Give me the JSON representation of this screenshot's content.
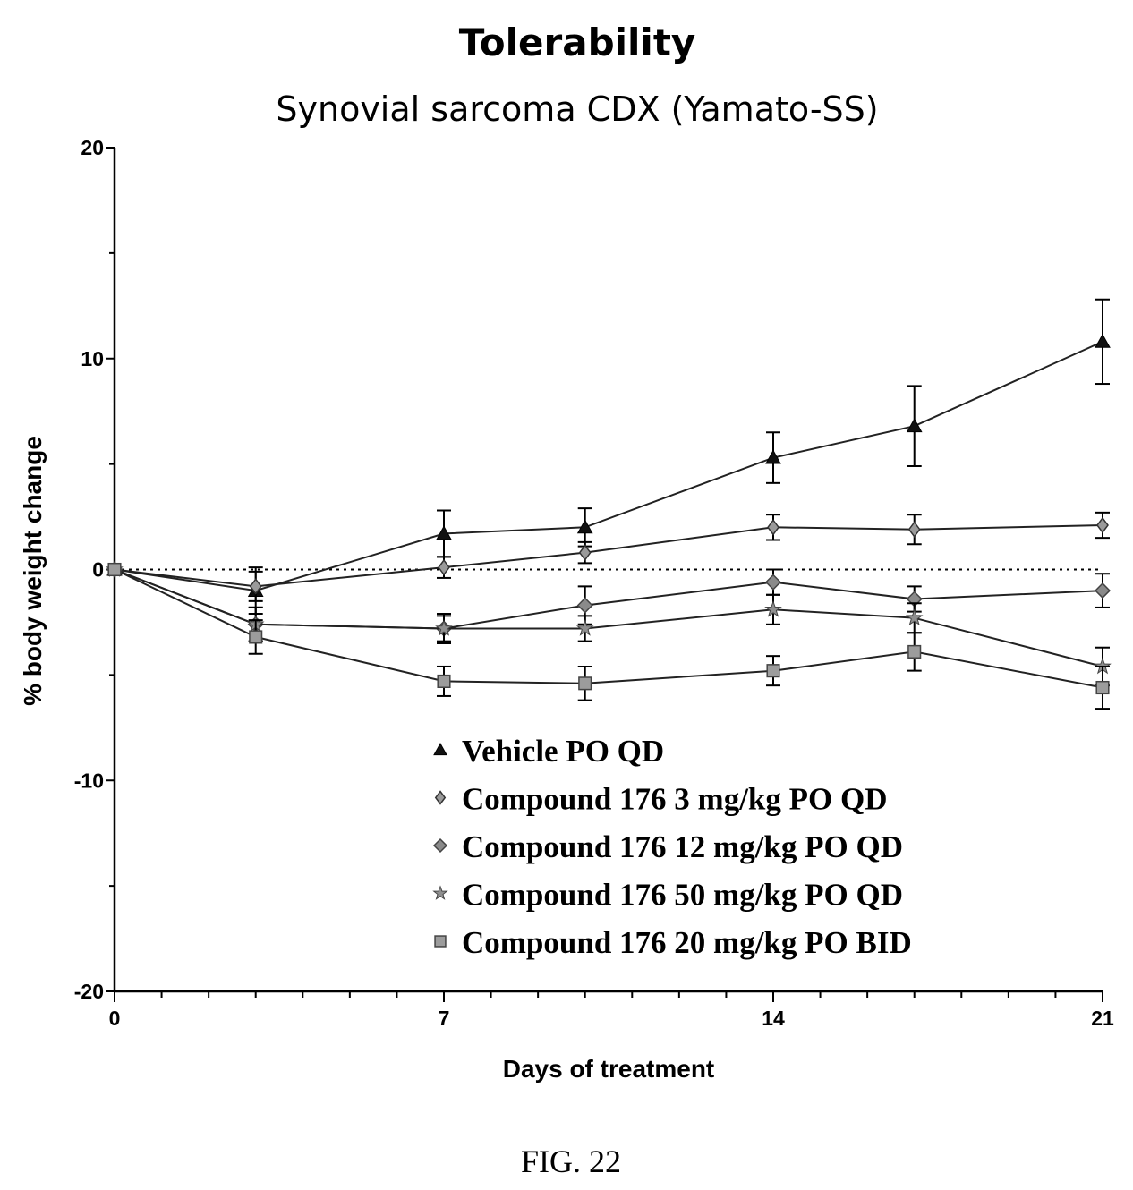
{
  "chart_data": {
    "type": "line",
    "title": "Tolerability",
    "subtitle": "Synovial sarcoma CDX (Yamato-SS)",
    "xlabel": "Days of treatment",
    "ylabel": "% body weight change",
    "xlim": [
      0,
      21
    ],
    "ylim": [
      -20,
      20
    ],
    "x_ticks": [
      0,
      7,
      14,
      21
    ],
    "y_ticks": [
      20,
      10,
      0,
      -10,
      -20
    ],
    "y_tick_labels": [
      "20",
      "10",
      "0",
      "-10",
      "-20"
    ],
    "reference_line": 0,
    "legend_position": "lower-right",
    "x": [
      0,
      3,
      7,
      10,
      14,
      17,
      21
    ],
    "series": [
      {
        "name": "Vehicle PO QD",
        "marker": "triangle",
        "values": [
          0,
          -1.0,
          1.7,
          2.0,
          5.3,
          6.8,
          10.8
        ],
        "errors": [
          0,
          1.1,
          1.1,
          0.9,
          1.2,
          1.9,
          2.0
        ]
      },
      {
        "name": "Compound 176 3 mg/kg PO QD",
        "marker": "diamond",
        "values": [
          0,
          -0.8,
          0.1,
          0.8,
          2.0,
          1.9,
          2.1
        ],
        "errors": [
          0,
          0.7,
          0.5,
          0.5,
          0.6,
          0.7,
          0.6
        ]
      },
      {
        "name": "Compound 176 12 mg/kg PO QD",
        "marker": "circle",
        "values": [
          0,
          -2.6,
          -2.8,
          -1.7,
          -0.6,
          -1.4,
          -1.0
        ],
        "errors": [
          0,
          0.8,
          0.7,
          0.9,
          0.6,
          0.6,
          0.8
        ]
      },
      {
        "name": "Compound 176 50 mg/kg PO QD",
        "marker": "star",
        "values": [
          0,
          -2.6,
          -2.8,
          -2.8,
          -1.9,
          -2.3,
          -4.6
        ],
        "errors": [
          0,
          0.8,
          0.6,
          0.6,
          0.7,
          0.7,
          0.9
        ]
      },
      {
        "name": "Compound 176 20 mg/kg PO BID",
        "marker": "square",
        "values": [
          0,
          -3.2,
          -5.3,
          -5.4,
          -4.8,
          -3.9,
          -5.6
        ],
        "errors": [
          0,
          0.8,
          0.7,
          0.8,
          0.7,
          0.9,
          1.0
        ]
      }
    ]
  },
  "caption": "FIG. 22"
}
